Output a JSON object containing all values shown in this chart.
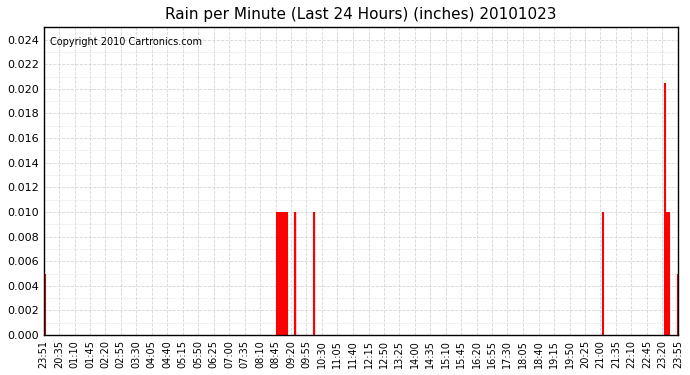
{
  "title": "Rain per Minute (Last 24 Hours) (inches) 20101023",
  "copyright": "Copyright 2010 Cartronics.com",
  "bar_color": "#ff0000",
  "background_color": "#ffffff",
  "plot_background": "#ffffff",
  "ylim": [
    0,
    0.025
  ],
  "yticks": [
    0.0,
    0.002,
    0.004,
    0.006,
    0.008,
    0.01,
    0.012,
    0.014,
    0.016,
    0.018,
    0.02,
    0.022,
    0.024
  ],
  "x_labels": [
    "23:51",
    "20:35",
    "01:10",
    "01:45",
    "02:20",
    "02:55",
    "03:30",
    "04:05",
    "04:40",
    "05:15",
    "05:50",
    "06:25",
    "07:00",
    "07:35",
    "08:10",
    "08:45",
    "09:20",
    "09:55",
    "10:30",
    "11:05",
    "11:40",
    "12:15",
    "12:50",
    "13:25",
    "14:00",
    "14:35",
    "15:10",
    "15:45",
    "16:20",
    "16:55",
    "17:30",
    "18:05",
    "18:40",
    "19:15",
    "19:50",
    "20:25",
    "21:00",
    "21:35",
    "22:10",
    "22:45",
    "23:20",
    "23:55"
  ],
  "num_points": 1440
}
